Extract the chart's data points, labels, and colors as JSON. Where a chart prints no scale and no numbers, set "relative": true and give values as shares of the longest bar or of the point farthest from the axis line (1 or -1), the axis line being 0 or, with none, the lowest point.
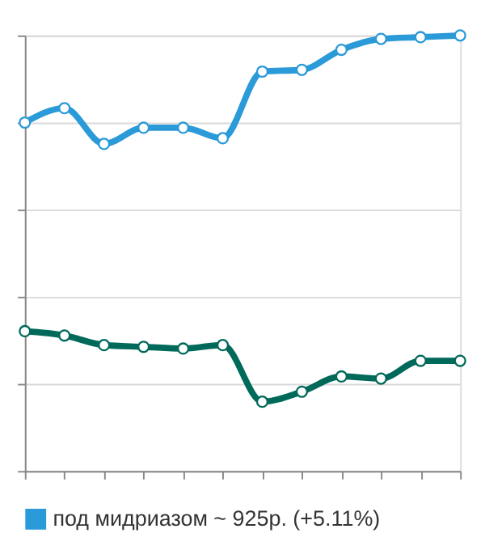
{
  "chart_data": {
    "type": "line",
    "relative": true,
    "categories": [
      null,
      null,
      null,
      null,
      null,
      null,
      null,
      null,
      null,
      null,
      null,
      null
    ],
    "series": [
      {
        "name": "под мидриазом ~ 925р. (+5.11%)",
        "color": "#2a9ad8",
        "values": [
          0.8,
          0.833,
          0.751,
          0.788,
          0.788,
          0.764,
          0.917,
          0.921,
          0.967,
          0.992,
          0.996,
          1
        ]
      },
      {
        "color": "#006a5a",
        "values": [
          0.321,
          0.311,
          0.289,
          0.285,
          0.281,
          0.289,
          0.159,
          0.182,
          0.217,
          0.212,
          0.253,
          0.253
        ]
      }
    ],
    "marker": "circle",
    "line_style": "solid",
    "grid": "y",
    "legend": "bottom",
    "tick_labels": false
  }
}
